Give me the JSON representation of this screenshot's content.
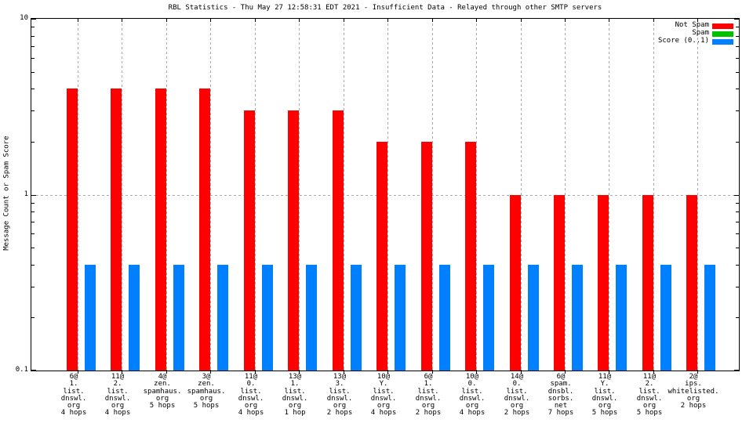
{
  "chart_data": {
    "type": "bar",
    "title": "RBL Statistics - Thu May 27 12:58:31 EDT 2021 - Insufficient Data - Relayed through other SMTP servers",
    "ylabel": "Message Count or Spam Score",
    "xlabel": "",
    "yscale": "log",
    "ylim": [
      0.1,
      10
    ],
    "yticks": {
      "values": [
        10,
        1,
        0.1
      ],
      "labels": [
        "10",
        "1",
        "0.1"
      ]
    },
    "grid": true,
    "legend_position": "top-right-inside",
    "grid_color": "#aaaaaa",
    "categories": [
      [
        "6@",
        "1.",
        "list.",
        "dnswl.",
        "org",
        "4 hops"
      ],
      [
        "11@",
        "2.",
        "list.",
        "dnswl.",
        "org",
        "4 hops"
      ],
      [
        "4@",
        "zen.",
        "spamhaus.",
        "org",
        "5 hops"
      ],
      [
        "3@",
        "zen.",
        "spamhaus.",
        "org",
        "5 hops"
      ],
      [
        "11@",
        "0.",
        "list.",
        "dnswl.",
        "org",
        "4 hops"
      ],
      [
        "13@",
        "1.",
        "list.",
        "dnswl.",
        "org",
        "1 hop"
      ],
      [
        "13@",
        "3.",
        "list.",
        "dnswl.",
        "org",
        "2 hops"
      ],
      [
        "10@",
        "Y.",
        "list.",
        "dnswl.",
        "org",
        "4 hops"
      ],
      [
        "6@",
        "1.",
        "list.",
        "dnswl.",
        "org",
        "2 hops"
      ],
      [
        "10@",
        "0.",
        "list.",
        "dnswl.",
        "org",
        "4 hops"
      ],
      [
        "14@",
        "0.",
        "list.",
        "dnswl.",
        "org",
        "2 hops"
      ],
      [
        "6@",
        "spam.",
        "dnsbl.",
        "sorbs.",
        "net",
        "7 hops"
      ],
      [
        "11@",
        "Y.",
        "list.",
        "dnswl.",
        "org",
        "5 hops"
      ],
      [
        "11@",
        "2.",
        "list.",
        "dnswl.",
        "org",
        "5 hops"
      ],
      [
        "2@",
        "ips.",
        "whitelisted.",
        "org",
        "2 hops"
      ]
    ],
    "series": [
      {
        "name": "Not Spam",
        "color": "#ff0000",
        "values": [
          4,
          4,
          4,
          4,
          3,
          3,
          3,
          2,
          2,
          2,
          1,
          1,
          1,
          1,
          1
        ]
      },
      {
        "name": "Spam",
        "color": "#00c000",
        "values": [
          0,
          0,
          0,
          0,
          0,
          0,
          0,
          0,
          0,
          0,
          0,
          0,
          0,
          0,
          0
        ]
      },
      {
        "name": "Score (0..1)",
        "color": "#0080ff",
        "values": [
          0.4,
          0.4,
          0.4,
          0.4,
          0.4,
          0.4,
          0.4,
          0.4,
          0.4,
          0.4,
          0.4,
          0.4,
          0.4,
          0.4,
          0.4
        ]
      }
    ]
  }
}
